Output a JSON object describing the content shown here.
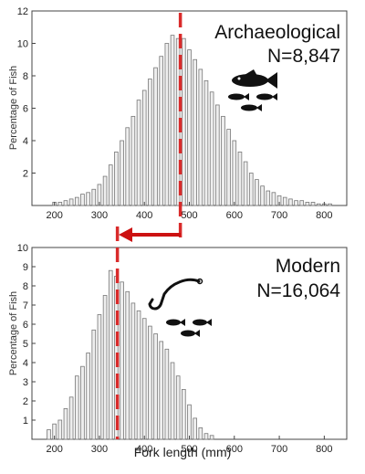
{
  "chart_data": [
    {
      "type": "bar",
      "title": "Archaeological",
      "subtitle": "N=8,847",
      "ylabel": "Percentage of Fish",
      "xlabel": "",
      "xlim": [
        150,
        850
      ],
      "ylim": [
        0,
        12
      ],
      "yticks": [
        2,
        4,
        6,
        8,
        10,
        12
      ],
      "xticks": [
        200,
        300,
        400,
        500,
        600,
        700,
        800
      ],
      "bin_width": 12.5,
      "x": [
        200,
        212.5,
        225,
        237.5,
        250,
        262.5,
        275,
        287.5,
        300,
        312.5,
        325,
        337.5,
        350,
        362.5,
        375,
        387.5,
        400,
        412.5,
        425,
        437.5,
        450,
        462.5,
        475,
        487.5,
        500,
        512.5,
        525,
        537.5,
        550,
        562.5,
        575,
        587.5,
        600,
        612.5,
        625,
        637.5,
        650,
        662.5,
        675,
        687.5,
        700,
        712.5,
        725,
        737.5,
        750,
        762.5,
        775,
        787.5,
        800,
        812.5
      ],
      "values": [
        0.2,
        0.2,
        0.3,
        0.4,
        0.5,
        0.7,
        0.8,
        1.0,
        1.3,
        1.8,
        2.5,
        3.3,
        4.0,
        4.8,
        5.5,
        6.5,
        7.1,
        7.8,
        8.5,
        9.2,
        10.0,
        10.5,
        10.3,
        10.3,
        9.6,
        9.0,
        8.4,
        7.7,
        7.0,
        6.2,
        5.5,
        4.7,
        4.0,
        3.3,
        2.7,
        2.0,
        1.6,
        1.2,
        0.9,
        0.8,
        0.6,
        0.5,
        0.4,
        0.3,
        0.3,
        0.2,
        0.2,
        0.1,
        0.1,
        0.1
      ],
      "reference_line_x": 480
    },
    {
      "type": "bar",
      "title": "Modern",
      "subtitle": "N=16,064",
      "ylabel": "Percentage of Fish",
      "xlabel": "Fork length (mm)",
      "xlim": [
        150,
        850
      ],
      "ylim": [
        0,
        10
      ],
      "yticks": [
        1,
        2,
        3,
        4,
        5,
        6,
        7,
        8,
        9,
        10
      ],
      "xticks": [
        200,
        300,
        400,
        500,
        600,
        700,
        800
      ],
      "bin_width": 12.5,
      "x": [
        187.5,
        200,
        212.5,
        225,
        237.5,
        250,
        262.5,
        275,
        287.5,
        300,
        312.5,
        325,
        337.5,
        350,
        362.5,
        375,
        387.5,
        400,
        412.5,
        425,
        437.5,
        450,
        462.5,
        475,
        487.5,
        500,
        512.5,
        525,
        537.5,
        550
      ],
      "values": [
        0.5,
        0.8,
        1.0,
        1.6,
        2.2,
        3.3,
        3.8,
        4.5,
        5.7,
        6.5,
        7.5,
        8.8,
        8.5,
        8.2,
        7.7,
        7.1,
        6.7,
        6.3,
        5.9,
        5.5,
        5.1,
        4.7,
        4.0,
        3.3,
        2.6,
        1.8,
        1.1,
        0.6,
        0.3,
        0.2
      ],
      "reference_line_x": 340
    }
  ],
  "colors": {
    "bar_fill": "#eeeeee",
    "bar_stroke": "#777777",
    "reference_line": "#d92b2b",
    "arrow": "#cc1111",
    "frame": "#444444"
  },
  "icons": [
    "fish-icon",
    "fish-school-icon",
    "fishhook-icon"
  ]
}
